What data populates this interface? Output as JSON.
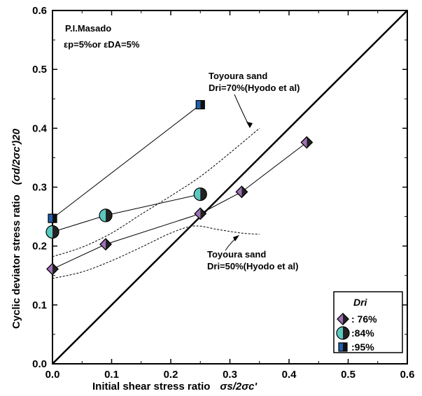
{
  "chart_data": {
    "type": "scatter",
    "xlabel": "Initial shear stress ratio",
    "xlabel_symbol": "σs/2σc'",
    "ylabel": "Cyclic deviator stress ratio",
    "ylabel_symbol": "(σd/2σc')20",
    "xlim": [
      0.0,
      0.6
    ],
    "ylim": [
      0.0,
      0.6
    ],
    "x_ticks": [
      "0.0",
      "0.1",
      "0.2",
      "0.3",
      "0.4",
      "0.5",
      "0.6"
    ],
    "y_ticks": [
      "0.0",
      "0.1",
      "0.2",
      "0.3",
      "0.4",
      "0.5",
      "0.6"
    ],
    "grid": false,
    "annotation_title": "P.I.Masado",
    "annotation_strain": "εp=5%or εDA=5%",
    "reference_line": {
      "from": [
        0,
        0
      ],
      "to": [
        0.6,
        0.6
      ]
    },
    "series": [
      {
        "name": ": 76%",
        "marker": "diamond-half",
        "color": "#a070b8",
        "x": [
          0.0,
          0.09,
          0.25,
          0.32,
          0.43
        ],
        "y": [
          0.161,
          0.203,
          0.255,
          0.292,
          0.376
        ]
      },
      {
        "name": ":84%",
        "marker": "circle-half",
        "color": "#5bc8c0",
        "x": [
          0.0,
          0.09,
          0.25
        ],
        "y": [
          0.224,
          0.252,
          0.288
        ]
      },
      {
        "name": ":95%",
        "marker": "square-half",
        "color": "#1f5fae",
        "x": [
          0.0,
          0.25
        ],
        "y": [
          0.247,
          0.44
        ]
      }
    ],
    "reference_curves": [
      {
        "label_line1": "Toyoura sand",
        "label_line2": "Dri=70%(Hyodo et al)",
        "x": [
          0.0,
          0.05,
          0.1,
          0.15,
          0.2,
          0.25,
          0.3,
          0.35
        ],
        "y": [
          0.182,
          0.198,
          0.222,
          0.254,
          0.285,
          0.318,
          0.358,
          0.4
        ]
      },
      {
        "label_line1": "Toyoura sand",
        "label_line2": "Dri=50%(Hyodo et al)",
        "x": [
          0.0,
          0.05,
          0.1,
          0.15,
          0.2,
          0.24,
          0.28,
          0.32,
          0.35
        ],
        "y": [
          0.145,
          0.156,
          0.175,
          0.198,
          0.222,
          0.234,
          0.228,
          0.222,
          0.22
        ]
      }
    ],
    "legend": {
      "title": "Dri",
      "position": "bottom-right"
    }
  }
}
